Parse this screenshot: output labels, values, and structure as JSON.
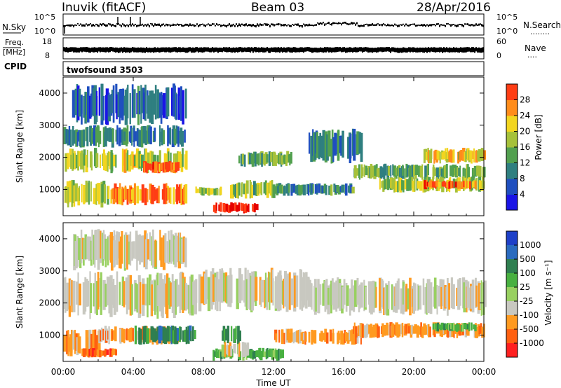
{
  "header": {
    "station": "Inuvik (fitACF)",
    "beam": "Beam 03",
    "date": "28/Apr/2016"
  },
  "strips": {
    "nsky_label": "N.Sky",
    "nsearch_label": "N.Search",
    "nsearch_dots": "........",
    "freq_label": "Freq.",
    "freq_unit": "[MHz]",
    "nave_label": "Nave",
    "nave_dots": "....",
    "cpid_label": "CPID",
    "cpid_value": "twofsound 3503",
    "nsky_ticks": [
      "10^5",
      "10^0"
    ],
    "nsearch_ticks": [
      "10^5",
      "10^0"
    ],
    "freq_ticks": [
      "18",
      "8"
    ],
    "nave_ticks": [
      "60",
      "0"
    ]
  },
  "colors": {
    "power": [
      "#1a14e6",
      "#1f4fbf",
      "#2f7f80",
      "#52a04f",
      "#a6c13a",
      "#f2d51f",
      "#ff8c1a",
      "#ff3d14",
      "#e60000"
    ],
    "velocity": [
      "#1e40c8",
      "#2a6bbf",
      "#2f7f50",
      "#48b040",
      "#98d060",
      "#c8c8c0",
      "#ff9a20",
      "#ff6010",
      "#ff2020",
      "#e00000"
    ]
  },
  "chart_data": [
    {
      "type": "heatmap",
      "panel": "power",
      "xlabel": "",
      "ylabel": "Slant Range [km]",
      "xlim": [
        0,
        24
      ],
      "ylim": [
        180,
        4500
      ],
      "yticks": [
        "1000",
        "2000",
        "3000",
        "4000"
      ],
      "colorbar": {
        "label": "Power [dB]",
        "ticks": [
          "4",
          "8",
          "12",
          "16",
          "20",
          "24",
          "28"
        ],
        "range": [
          0,
          30
        ]
      },
      "echo_bands": [
        {
          "t0": 0.0,
          "t1": 7.0,
          "r0": 1500,
          "r1": 2300,
          "level": 16
        },
        {
          "t0": 0.0,
          "t1": 7.0,
          "r0": 2300,
          "r1": 3000,
          "level": 7
        },
        {
          "t0": 0.0,
          "t1": 2.5,
          "r0": 400,
          "r1": 1300,
          "level": 16
        },
        {
          "t0": 2.5,
          "t1": 7.0,
          "r0": 500,
          "r1": 1200,
          "level": 23
        },
        {
          "t0": 4.5,
          "t1": 6.5,
          "r0": 1500,
          "r1": 1900,
          "level": 24
        },
        {
          "t0": 7.5,
          "t1": 9.0,
          "r0": 800,
          "r1": 1100,
          "level": 15
        },
        {
          "t0": 8.5,
          "t1": 11.0,
          "r0": 250,
          "r1": 600,
          "level": 28
        },
        {
          "t0": 9.5,
          "t1": 12.0,
          "r0": 700,
          "r1": 1300,
          "level": 14
        },
        {
          "t0": 10.0,
          "t1": 13.0,
          "r0": 1700,
          "r1": 2200,
          "level": 12
        },
        {
          "t0": 12.0,
          "t1": 16.5,
          "r0": 800,
          "r1": 1200,
          "level": 9
        },
        {
          "t0": 14.0,
          "t1": 17.0,
          "r0": 1800,
          "r1": 2900,
          "level": 8
        },
        {
          "t0": 16.5,
          "t1": 24.0,
          "r0": 1300,
          "r1": 1800,
          "level": 12
        },
        {
          "t0": 18.0,
          "t1": 24.0,
          "r0": 900,
          "r1": 1400,
          "level": 15
        },
        {
          "t0": 20.5,
          "t1": 23.5,
          "r0": 1000,
          "r1": 1300,
          "level": 24
        },
        {
          "t0": 20.5,
          "t1": 24.0,
          "r0": 1800,
          "r1": 2300,
          "level": 18
        },
        {
          "t0": 0.5,
          "t1": 7.0,
          "r0": 3000,
          "r1": 4300,
          "level": 5
        }
      ]
    },
    {
      "type": "heatmap",
      "panel": "velocity",
      "xlabel": "Time UT",
      "ylabel": "Slant Range [km]",
      "xlim": [
        0,
        24
      ],
      "ylim": [
        180,
        4500
      ],
      "xticks": [
        "00:00",
        "04:00",
        "08:00",
        "12:00",
        "16:00",
        "20:00",
        "00:00"
      ],
      "yticks": [
        "1000",
        "2000",
        "3000",
        "4000"
      ],
      "colorbar": {
        "label": "Velocity [m s⁻¹]",
        "ticks": [
          "1000",
          "500",
          "100",
          "25",
          "-25",
          "-100",
          "-500",
          "-1000"
        ]
      },
      "echo_bands": [
        {
          "t0": 0.0,
          "t1": 7.5,
          "r0": 1500,
          "r1": 3000,
          "class": 5
        },
        {
          "t0": 7.5,
          "t1": 14.0,
          "r0": 1700,
          "r1": 3100,
          "class": 5
        },
        {
          "t0": 14.0,
          "t1": 24.0,
          "r0": 1600,
          "r1": 2800,
          "class": 5
        },
        {
          "t0": 0.0,
          "t1": 2.0,
          "r0": 300,
          "r1": 1200,
          "class": 6
        },
        {
          "t0": 1.0,
          "t1": 3.0,
          "r0": 300,
          "r1": 600,
          "class": 7
        },
        {
          "t0": 2.0,
          "t1": 6.5,
          "r0": 700,
          "r1": 1300,
          "class": 6
        },
        {
          "t0": 4.0,
          "t1": 7.5,
          "r0": 700,
          "r1": 1300,
          "class": 2
        },
        {
          "t0": 8.5,
          "t1": 12.5,
          "r0": 200,
          "r1": 600,
          "class": 3
        },
        {
          "t0": 9.0,
          "t1": 10.0,
          "r0": 700,
          "r1": 1300,
          "class": 2
        },
        {
          "t0": 9.0,
          "t1": 10.5,
          "r0": 300,
          "r1": 800,
          "class": 5
        },
        {
          "t0": 12.0,
          "t1": 17.0,
          "r0": 700,
          "r1": 1200,
          "class": 6
        },
        {
          "t0": 16.5,
          "t1": 24.0,
          "r0": 900,
          "r1": 1400,
          "class": 6
        },
        {
          "t0": 21.0,
          "t1": 23.5,
          "r0": 1100,
          "r1": 1400,
          "class": 3
        },
        {
          "t0": 0.5,
          "t1": 7.0,
          "r0": 3000,
          "r1": 4300,
          "class": 5
        }
      ]
    }
  ]
}
